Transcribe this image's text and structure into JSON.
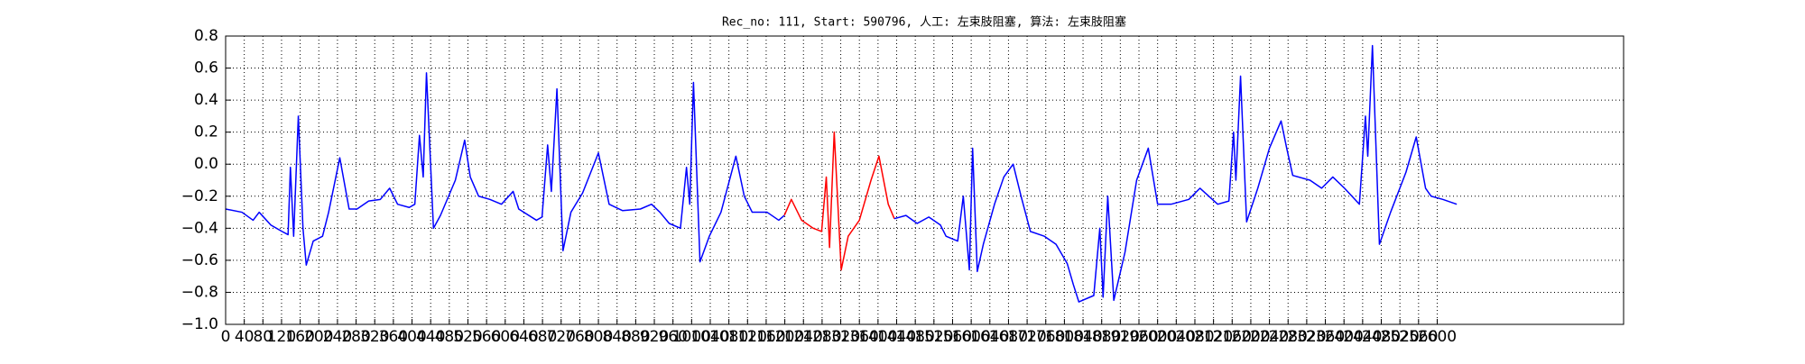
{
  "chart_data": {
    "type": "line",
    "title": "Rec_no: 111, Start: 590796, 人工: 左束肢阻塞, 算法: 左束肢阻塞",
    "xlim": [
      0,
      3000
    ],
    "xticks": [
      0,
      40,
      80,
      120,
      160,
      200,
      240,
      280,
      320,
      360,
      400,
      440,
      480,
      520,
      560,
      600,
      640,
      680,
      720,
      760,
      800,
      840,
      880,
      920,
      960,
      1000,
      1040,
      1080,
      1120,
      1160,
      1200,
      1240,
      1280,
      1320,
      1360,
      1400,
      1440,
      1480,
      1520,
      1560,
      1600,
      1640,
      1680,
      1720,
      1760,
      1800,
      1840,
      1880,
      1920,
      1960,
      2000,
      2040,
      2080,
      2120,
      2160,
      2200,
      2240,
      2280,
      2320,
      2360,
      2400,
      2440,
      2480,
      2520,
      2560,
      2600
    ],
    "ylim": [
      -1.0,
      0.8
    ],
    "yticks": [
      {
        "value": -1.0,
        "label": "−1.0"
      },
      {
        "value": -0.8,
        "label": "−0.8"
      },
      {
        "value": -0.6,
        "label": "−0.6"
      },
      {
        "value": -0.4,
        "label": "−0.4"
      },
      {
        "value": -0.2,
        "label": "−0.2"
      },
      {
        "value": 0,
        "label": "0.0"
      },
      0.2,
      0.4,
      0.6,
      0.8
    ],
    "grid": true,
    "series": [
      {
        "color": "#0000ff",
        "x": [
          0,
          35,
          59,
          72,
          97,
          121,
          134,
          139,
          146,
          156,
          166,
          173,
          188,
          208,
          221,
          245,
          265,
          282,
          307,
          332,
          352,
          369,
          394,
          406,
          416,
          424,
          431,
          446,
          461,
          493,
          513,
          525,
          543,
          567,
          592,
          617,
          629,
          667,
          679,
          691,
          699,
          711,
          724,
          741,
          766,
          800,
          823,
          852,
          890,
          914,
          932,
          952,
          976,
          989,
          996,
          1004,
          1018,
          1038,
          1063,
          1095,
          1113,
          1130,
          1162,
          1187,
          1199
        ],
        "values": [
          -0.28,
          -0.3,
          -0.35,
          -0.3,
          -0.38,
          -0.42,
          -0.44,
          -0.02,
          -0.45,
          0.3,
          -0.4,
          -0.63,
          -0.48,
          -0.45,
          -0.3,
          0.04,
          -0.28,
          -0.28,
          -0.23,
          -0.22,
          -0.15,
          -0.25,
          -0.27,
          -0.25,
          0.18,
          -0.08,
          0.57,
          -0.4,
          -0.32,
          -0.1,
          0.15,
          -0.08,
          -0.2,
          -0.22,
          -0.25,
          -0.17,
          -0.28,
          -0.35,
          -0.33,
          0.12,
          -0.17,
          0.47,
          -0.54,
          -0.3,
          -0.18,
          0.07,
          -0.25,
          -0.29,
          -0.28,
          -0.25,
          -0.3,
          -0.37,
          -0.4,
          -0.02,
          -0.25,
          0.51,
          -0.61,
          -0.45,
          -0.3,
          0.05,
          -0.2,
          -0.3,
          -0.3,
          -0.35,
          -0.32
        ]
      },
      {
        "color": "#ff0000",
        "x": [
          1199,
          1214,
          1236,
          1261,
          1279,
          1289,
          1296,
          1306,
          1321,
          1336,
          1360,
          1385,
          1402,
          1422,
          1435
        ],
        "values": [
          -0.32,
          -0.22,
          -0.35,
          -0.4,
          -0.42,
          -0.08,
          -0.52,
          0.2,
          -0.66,
          -0.45,
          -0.35,
          -0.1,
          0.05,
          -0.25,
          -0.34
        ]
      },
      {
        "color": "#0000ff",
        "x": [
          1435,
          1460,
          1484,
          1509,
          1534,
          1546,
          1571,
          1583,
          1596,
          1603,
          1613,
          1626,
          1650,
          1670,
          1690,
          1707,
          1727,
          1757,
          1782,
          1806,
          1819,
          1831,
          1863,
          1876,
          1883,
          1893,
          1906,
          1930,
          1955,
          1980,
          2000,
          2029,
          2067,
          2091,
          2129,
          2153,
          2163,
          2168,
          2178,
          2191,
          2215,
          2240,
          2265,
          2277,
          2290,
          2327,
          2352,
          2376,
          2401,
          2433,
          2446,
          2451,
          2461,
          2476,
          2500,
          2533,
          2555,
          2575,
          2587,
          2612,
          2642
        ],
        "values": [
          -0.34,
          -0.32,
          -0.37,
          -0.33,
          -0.38,
          -0.45,
          -0.48,
          -0.2,
          -0.66,
          0.1,
          -0.67,
          -0.5,
          -0.25,
          -0.08,
          0.0,
          -0.2,
          -0.42,
          -0.45,
          -0.5,
          -0.62,
          -0.75,
          -0.86,
          -0.82,
          -0.4,
          -0.83,
          -0.2,
          -0.85,
          -0.55,
          -0.1,
          0.1,
          -0.25,
          -0.25,
          -0.22,
          -0.15,
          -0.25,
          -0.23,
          0.2,
          -0.1,
          0.55,
          -0.36,
          -0.15,
          0.1,
          0.27,
          0.1,
          -0.07,
          -0.1,
          -0.15,
          -0.08,
          -0.15,
          -0.25,
          0.3,
          0.05,
          0.74,
          -0.5,
          -0.3,
          -0.05,
          0.17,
          -0.15,
          -0.2,
          -0.22,
          -0.25
        ]
      }
    ]
  }
}
